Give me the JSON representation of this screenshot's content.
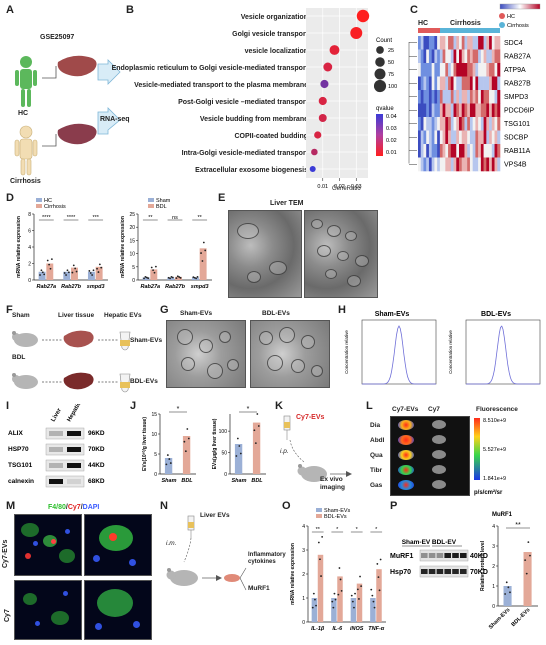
{
  "panels": {
    "A": "A",
    "B": "B",
    "C": "C",
    "D": "D",
    "E": "E",
    "F": "F",
    "G": "G",
    "H": "H",
    "I": "I",
    "J": "J",
    "K": "K",
    "L": "L",
    "M": "M",
    "N": "N",
    "O": "O",
    "P": "P"
  },
  "panelA": {
    "dataset": "GSE25097",
    "hc": "HC",
    "cirrhosis": "Cirrhosis",
    "rnaseq": "RNA-seq"
  },
  "panelB": {
    "terms": [
      "Vesicle organization",
      "Golgi vesicle transport",
      "vesicle localization",
      "Endoplasmic reticulum to Golgi vesicle-mediated transport",
      "Vesicle-mediated transport to the plasma membrane",
      "Post-Golgi vesicle –mediated transport",
      "Vesicle budding from membrane",
      "COPII-coated budding",
      "Intra-Golgi vesicle-mediated transport",
      "Extracellular exosome biogenesis"
    ],
    "xlabel": "GeneRatio",
    "xticks": [
      "0.01",
      "0.02",
      "0.03"
    ],
    "count_title": "Count",
    "count_levels": [
      "25",
      "50",
      "75",
      "100"
    ],
    "qvalue_title": "qvalue",
    "qvalue_levels": [
      "0.04",
      "0.03",
      "0.02",
      "0.01"
    ]
  },
  "panelC": {
    "hc": "HC",
    "cirrhosis": "Cirrhosis",
    "legend_hc": "HC",
    "legend_cirrhosis": "Cirrhosis",
    "genes": [
      "SDC4",
      "RAB27A",
      "ATP9A",
      "RAB27B",
      "SMPD3",
      "PDCD6IP",
      "TSG101",
      "SDCBP",
      "RAB11A",
      "VPS4B"
    ]
  },
  "panelD": {
    "legend_left": [
      "HC",
      "Cirrhosis"
    ],
    "legend_right": [
      "Sham",
      "BDL"
    ],
    "ylabel": "mRNA relative expression",
    "xlabels": [
      "Rab27a",
      "Rab27b",
      "smpd3"
    ],
    "sig_left": [
      "****",
      "****",
      "***"
    ],
    "sig_right": [
      "**",
      "ns",
      "**"
    ],
    "yticks_left": [
      "0",
      "2",
      "4",
      "6",
      "8"
    ],
    "yticks_right": [
      "0",
      "5",
      "10",
      "15",
      "20",
      "25"
    ]
  },
  "panelE": {
    "title": "Liver TEM"
  },
  "panelF": {
    "sham": "Sham",
    "bdl": "BDL",
    "liver_tissue": "Liver tissue",
    "hepatic_evs": "Hepatic EVs",
    "sham_evs": "Sham-EVs",
    "bdl_evs": "BDL-EVs"
  },
  "panelG": {
    "sham": "Sham-EVs",
    "bdl": "BDL-EVs"
  },
  "panelH": {
    "sham": "Sham-EVs",
    "bdl": "BDL-EVs",
    "ylabel": "Concentration relative"
  },
  "panelI": {
    "cols": [
      "Liver",
      "Hepatic EVs"
    ],
    "rows": [
      {
        "name": "ALIX",
        "kda": "96KD"
      },
      {
        "name": "HSP70",
        "kda": "70KD"
      },
      {
        "name": "TSG101",
        "kda": "44KD"
      },
      {
        "name": "calnexin",
        "kda": "68KD"
      }
    ]
  },
  "panelJ": {
    "ylabel1": "EVs(10¹⁰/g liver tissue)",
    "ylabel2": "EVs(μg/g liver tissue)",
    "xlabels": [
      "Sham",
      "BDL"
    ],
    "sig": "*",
    "yticks1": [
      "0",
      "5",
      "10",
      "15"
    ],
    "yticks2": [
      "0",
      "50",
      "100"
    ]
  },
  "panelK": {
    "agent": "Cy7-EVs",
    "route": "i.p.",
    "readout": "Ex vivo imaging"
  },
  "panelL": {
    "col1": "Cy7-EVs",
    "col2": "Cy7",
    "organs": [
      "Dia",
      "Abdl",
      "Qua",
      "Tibr",
      "Gas"
    ],
    "scale_title": "Fluorescence",
    "scale_values": [
      "8.510e+9",
      "5.527e+9",
      "1.841e+9"
    ],
    "unit": "p/s/cm²/sr"
  },
  "panelM": {
    "stain_a": "F4/80",
    "stain_b": "Cy7",
    "stain_c": "DAPI",
    "row1": "Cy7-EVs",
    "row2": "Cy7"
  },
  "panelN": {
    "agent": "Liver EVs",
    "route": "i.m.",
    "out1": "Inflammatory cytokines",
    "out2": "MuRF1"
  },
  "panelO": {
    "legend": [
      "Sham-EVs",
      "BDL-EVs"
    ],
    "ylabel": "mRNA relative expression",
    "xlabels": [
      "IL-1β",
      "IL-6",
      "iNOS",
      "TNF-α"
    ],
    "sig": [
      "**",
      "*",
      "*",
      "*"
    ],
    "yticks": [
      "0",
      "1",
      "2",
      "3",
      "4"
    ]
  },
  "panelP": {
    "cols": [
      "Sham-EV",
      "BDL-EV"
    ],
    "rows": [
      {
        "name": "MuRF1",
        "kda": "40KD"
      },
      {
        "name": "Hsp70",
        "kda": "70KD"
      }
    ],
    "chart_title": "MuRF1",
    "ylabel": "Relative protein level",
    "xlabels": [
      "Sham-EVs",
      "BDL-EVs"
    ],
    "sig": "**",
    "yticks": [
      "0",
      "1",
      "2",
      "3",
      "4"
    ]
  },
  "colors": {
    "hc": "#e05a5a",
    "cirrhosis": "#5ab4d8",
    "blue_bar": "#9bb0d6",
    "pink_bar": "#e3a898"
  },
  "chart_data": [
    {
      "type": "scatter",
      "title": "",
      "xlabel": "GeneRatio",
      "categories": [
        "Vesicle organization",
        "Golgi vesicle transport",
        "vesicle localization",
        "Endoplasmic reticulum to Golgi vesicle-mediated transport",
        "Vesicle-mediated transport to the plasma membrane",
        "Post-Golgi vesicle –mediated transport",
        "Vesicle budding from membrane",
        "COPII-coated budding",
        "Intra-Golgi vesicle-mediated transport",
        "Extracellular exosome biogenesis"
      ],
      "x": [
        0.034,
        0.03,
        0.017,
        0.013,
        0.011,
        0.01,
        0.01,
        0.007,
        0.005,
        0.004
      ],
      "count": [
        105,
        95,
        55,
        40,
        30,
        30,
        28,
        20,
        14,
        10
      ],
      "qvalue": [
        0.005,
        0.006,
        0.01,
        0.012,
        0.03,
        0.012,
        0.013,
        0.012,
        0.018,
        0.04
      ],
      "xlim": [
        0.0,
        0.037
      ]
    },
    {
      "type": "bar",
      "xlabel": "",
      "ylabel": "mRNA relative expression",
      "categories": [
        "Rab27a",
        "Rab27b",
        "smpd3"
      ],
      "series": [
        {
          "name": "HC",
          "values": [
            1.0,
            1.0,
            1.0
          ]
        },
        {
          "name": "Cirrhosis",
          "values": [
            2.0,
            1.5,
            1.6
          ]
        }
      ],
      "ylim": [
        0,
        8
      ]
    },
    {
      "type": "bar",
      "xlabel": "",
      "ylabel": "mRNA relative expression",
      "categories": [
        "Rab27a",
        "Rab27b",
        "smpd3"
      ],
      "series": [
        {
          "name": "Sham",
          "values": [
            1.0,
            1.0,
            1.0
          ]
        },
        {
          "name": "BDL",
          "values": [
            4.0,
            1.2,
            12.0
          ]
        }
      ],
      "ylim": [
        0,
        25
      ]
    },
    {
      "type": "bar",
      "ylabel": "EVs(10¹⁰/g liver tissue)",
      "categories": [
        "Sham",
        "BDL"
      ],
      "values": [
        4.0,
        9.5
      ],
      "ylim": [
        0,
        15
      ]
    },
    {
      "type": "bar",
      "ylabel": "EVs(μg/g liver tissue)",
      "categories": [
        "Sham",
        "BDL"
      ],
      "values": [
        70,
        120
      ],
      "ylim": [
        0,
        140
      ]
    },
    {
      "type": "bar",
      "ylabel": "mRNA relative expression",
      "categories": [
        "IL-1β",
        "IL-6",
        "iNOS",
        "TNF-α"
      ],
      "series": [
        {
          "name": "Sham-EVs",
          "values": [
            1.0,
            1.0,
            1.0,
            1.0
          ]
        },
        {
          "name": "BDL-EVs",
          "values": [
            2.8,
            1.9,
            1.6,
            2.2
          ]
        }
      ],
      "ylim": [
        0,
        4
      ]
    },
    {
      "type": "bar",
      "title": "MuRF1",
      "ylabel": "Relative protein level",
      "categories": [
        "Sham-EVs",
        "BDL-EVs"
      ],
      "values": [
        1.0,
        2.7
      ],
      "ylim": [
        0,
        4
      ]
    }
  ]
}
